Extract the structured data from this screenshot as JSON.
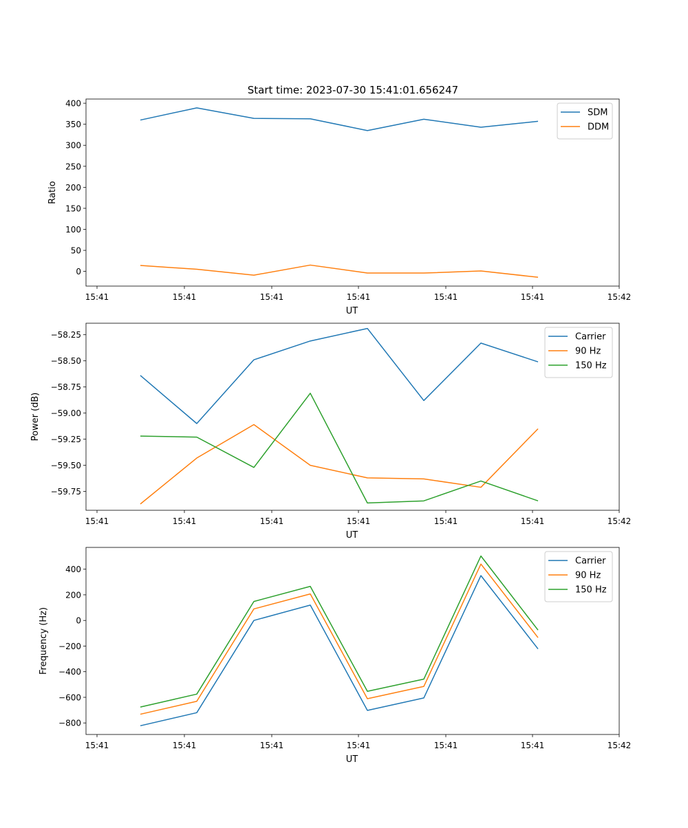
{
  "figure_title": "Start time: 2023-07-30 15:41:01.656247",
  "colors": {
    "blue": "#1f77b4",
    "orange": "#ff7f0e",
    "green": "#2ca02c"
  },
  "chart_data": [
    {
      "type": "line",
      "xlabel": "UT",
      "ylabel": "Ratio",
      "x_tick_labels": [
        "15:41",
        "15:41",
        "15:41",
        "15:41",
        "15:41",
        "15:41",
        "15:42"
      ],
      "x_point_count": 8,
      "ylim": [
        -35,
        410
      ],
      "yticks": [
        0,
        50,
        100,
        150,
        200,
        250,
        300,
        350,
        400
      ],
      "ytick_labels": [
        "0",
        "50",
        "100",
        "150",
        "200",
        "250",
        "300",
        "350",
        "400"
      ],
      "legend_position": "top-right",
      "series": [
        {
          "name": "SDM",
          "color": "#1f77b4",
          "values": [
            360,
            389,
            364,
            363,
            335,
            362,
            343,
            357
          ]
        },
        {
          "name": "DDM",
          "color": "#ff7f0e",
          "values": [
            14,
            5,
            -9,
            15,
            -4,
            -4,
            1,
            -14
          ]
        }
      ]
    },
    {
      "type": "line",
      "xlabel": "UT",
      "ylabel": "Power (dB)",
      "x_tick_labels": [
        "15:41",
        "15:41",
        "15:41",
        "15:41",
        "15:41",
        "15:41",
        "15:42"
      ],
      "x_point_count": 8,
      "ylim": [
        -59.93,
        -58.14
      ],
      "yticks": [
        -59.75,
        -59.5,
        -59.25,
        -59.0,
        -58.75,
        -58.5,
        -58.25
      ],
      "ytick_labels": [
        "−59.75",
        "−59.50",
        "−59.25",
        "−59.00",
        "−58.75",
        "−58.50",
        "−58.25"
      ],
      "legend_position": "top-right",
      "series": [
        {
          "name": "Carrier",
          "color": "#1f77b4",
          "values": [
            -58.64,
            -59.1,
            -58.49,
            -58.31,
            -58.19,
            -58.88,
            -58.33,
            -58.51
          ]
        },
        {
          "name": "90 Hz",
          "color": "#ff7f0e",
          "values": [
            -59.87,
            -59.43,
            -59.11,
            -59.5,
            -59.62,
            -59.63,
            -59.71,
            -59.15
          ]
        },
        {
          "name": "150 Hz",
          "color": "#2ca02c",
          "values": [
            -59.22,
            -59.23,
            -59.52,
            -58.81,
            -59.86,
            -59.84,
            -59.65,
            -59.84
          ]
        }
      ]
    },
    {
      "type": "line",
      "xlabel": "UT",
      "ylabel": "Frequency (Hz)",
      "x_tick_labels": [
        "15:41",
        "15:41",
        "15:41",
        "15:41",
        "15:41",
        "15:41",
        "15:42"
      ],
      "x_point_count": 8,
      "ylim": [
        -890,
        570
      ],
      "yticks": [
        -800,
        -600,
        -400,
        -200,
        0,
        200,
        400
      ],
      "ytick_labels": [
        "−800",
        "−600",
        "−400",
        "−200",
        "0",
        "200",
        "400"
      ],
      "legend_position": "top-right",
      "series": [
        {
          "name": "Carrier",
          "color": "#1f77b4",
          "values": [
            -822,
            -720,
            0,
            120,
            -702,
            -605,
            350,
            -222
          ]
        },
        {
          "name": "90 Hz",
          "color": "#ff7f0e",
          "values": [
            -732,
            -631,
            90,
            207,
            -611,
            -515,
            440,
            -134
          ]
        },
        {
          "name": "150 Hz",
          "color": "#2ca02c",
          "values": [
            -676,
            -575,
            148,
            266,
            -553,
            -458,
            503,
            -75
          ]
        }
      ]
    }
  ]
}
